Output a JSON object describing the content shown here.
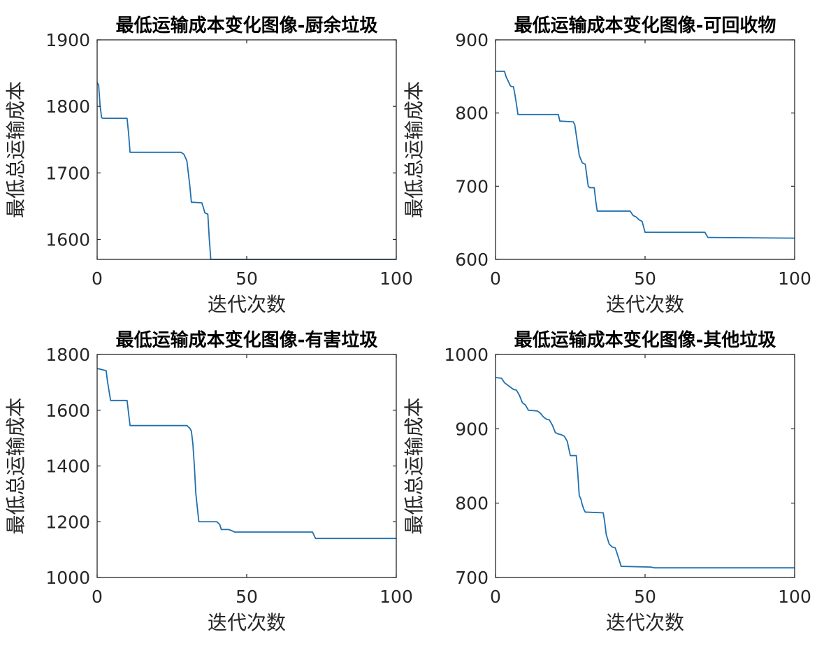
{
  "figure": {
    "line_color": "#1f6fae",
    "axes_color": "#262626"
  },
  "chart_data": [
    {
      "type": "line",
      "title": "最低运输成本变化图像-厨余垃圾",
      "xlabel": "迭代次数",
      "ylabel": "最低总运输成本",
      "xlim": [
        0,
        100
      ],
      "ylim": [
        1570,
        1900
      ],
      "xticks": [
        0,
        50,
        100
      ],
      "yticks": [
        1600,
        1700,
        1800,
        1900
      ],
      "grid": false,
      "series": [
        {
          "x": [
            0,
            0.5,
            1,
            1.5,
            2,
            10,
            10.5,
            11,
            28,
            29,
            30,
            31,
            31.5,
            35,
            35.5,
            36,
            37,
            37.5,
            38,
            100
          ],
          "y": [
            1836,
            1832,
            1800,
            1783,
            1782,
            1782,
            1760,
            1731,
            1731,
            1728,
            1718,
            1680,
            1656,
            1655,
            1648,
            1640,
            1638,
            1600,
            1570,
            1570
          ]
        }
      ]
    },
    {
      "type": "line",
      "title": "最低运输成本变化图像-可回收物",
      "xlabel": "迭代次数",
      "ylabel": "最低总运输成本",
      "xlim": [
        0,
        100
      ],
      "ylim": [
        600,
        900
      ],
      "xticks": [
        0,
        50,
        100
      ],
      "yticks": [
        600,
        700,
        800,
        900
      ],
      "grid": false,
      "series": [
        {
          "x": [
            0,
            3,
            3.5,
            5,
            5.5,
            6,
            6.5,
            7,
            7.5,
            21,
            21.5,
            26,
            26.5,
            27,
            28,
            29,
            30,
            30.5,
            31,
            31.5,
            33,
            33.5,
            34,
            45,
            46,
            47,
            48,
            49,
            50,
            70,
            71,
            100
          ],
          "y": [
            857,
            857,
            850,
            837,
            836,
            836,
            825,
            812,
            798,
            798,
            789,
            788,
            784,
            770,
            742,
            732,
            730,
            715,
            700,
            698,
            698,
            680,
            666,
            666,
            660,
            658,
            654,
            652,
            637,
            637,
            630,
            629
          ]
        }
      ]
    },
    {
      "type": "line",
      "title": "最低运输成本变化图像-有害垃圾",
      "xlabel": "迭代次数",
      "ylabel": "最低总运输成本",
      "xlim": [
        0,
        100
      ],
      "ylim": [
        1000,
        1800
      ],
      "xticks": [
        0,
        50,
        100
      ],
      "yticks": [
        1000,
        1200,
        1400,
        1600,
        1800
      ],
      "grid": false,
      "series": [
        {
          "x": [
            0,
            3,
            3.5,
            4.5,
            10,
            11,
            30,
            31,
            31.5,
            32,
            32.5,
            33,
            33.5,
            34,
            40,
            41,
            41.5,
            44,
            45,
            46,
            72,
            73,
            100
          ],
          "y": [
            1750,
            1742,
            1700,
            1635,
            1635,
            1545,
            1545,
            1535,
            1525,
            1480,
            1400,
            1300,
            1250,
            1200,
            1200,
            1190,
            1172,
            1172,
            1168,
            1163,
            1163,
            1140,
            1140
          ]
        }
      ]
    },
    {
      "type": "line",
      "title": "最低运输成本变化图像-其他垃圾",
      "xlabel": "迭代次数",
      "ylabel": "最低总运输成本",
      "xlim": [
        0,
        100
      ],
      "ylim": [
        700,
        1000
      ],
      "xticks": [
        0,
        50,
        100
      ],
      "yticks": [
        700,
        800,
        900,
        1000
      ],
      "grid": false,
      "series": [
        {
          "x": [
            0,
            2,
            3,
            6,
            7,
            8,
            9,
            10,
            11,
            14,
            15,
            16,
            17,
            18,
            19,
            20,
            21,
            22,
            23,
            24,
            25,
            27,
            27.5,
            28,
            28.5,
            29,
            29.5,
            30,
            36,
            36.5,
            37,
            38,
            39,
            40,
            41,
            42,
            52,
            53,
            100
          ],
          "y": [
            969,
            968,
            962,
            953,
            952,
            945,
            935,
            932,
            925,
            924,
            921,
            916,
            913,
            912,
            905,
            895,
            893,
            892,
            890,
            883,
            864,
            864,
            840,
            810,
            806,
            798,
            792,
            788,
            787,
            775,
            758,
            745,
            741,
            740,
            728,
            715,
            714,
            713,
            713
          ]
        }
      ]
    }
  ]
}
